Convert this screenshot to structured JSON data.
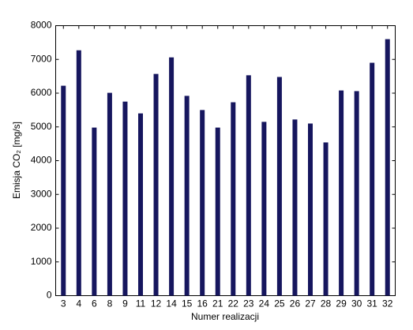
{
  "chart_data": {
    "type": "bar",
    "xlabel": "Numer realizacji",
    "ylabel": "Emisja CO₂ [mg/s]",
    "categories": [
      "3",
      "4",
      "6",
      "8",
      "9",
      "11",
      "12",
      "14",
      "15",
      "16",
      "21",
      "22",
      "23",
      "24",
      "25",
      "26",
      "27",
      "28",
      "29",
      "30",
      "31",
      "32"
    ],
    "values": [
      6220,
      7270,
      4980,
      6010,
      5750,
      5400,
      6570,
      7060,
      5920,
      5500,
      4980,
      5730,
      6530,
      5150,
      6480,
      5220,
      5100,
      4540,
      6080,
      6060,
      6900,
      7600
    ],
    "color": "#16165e",
    "ylim": [
      0,
      8000
    ],
    "yticks": [
      0,
      1000,
      2000,
      3000,
      4000,
      5000,
      6000,
      7000,
      8000
    ],
    "grid": false
  }
}
